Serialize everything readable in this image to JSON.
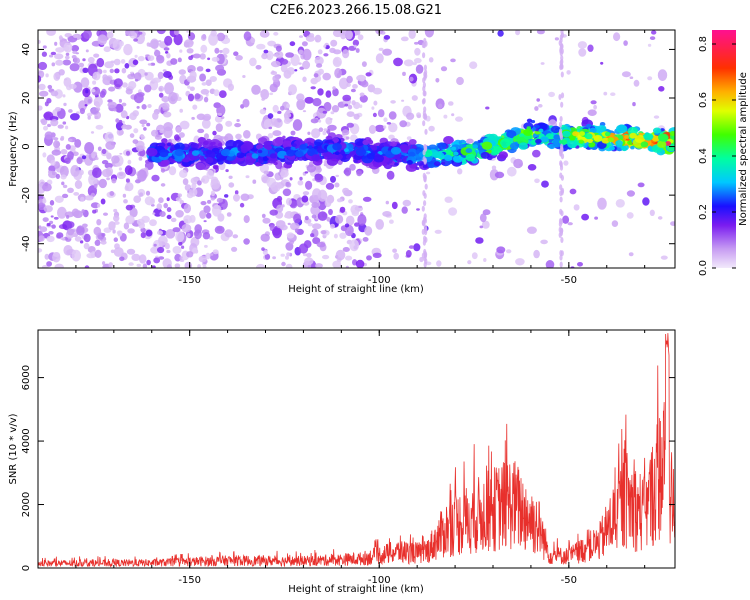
{
  "title": "C2E6.2023.266.15.08.G21",
  "chart_data": [
    {
      "type": "heatmap",
      "xlabel": "Height of straight line (km)",
      "ylabel": "Frequency (Hz)",
      "xlim": [
        -190,
        -22
      ],
      "ylim": [
        -50,
        48
      ],
      "xticks": [
        -150,
        -100,
        -50
      ],
      "yticks": [
        -40,
        -20,
        0,
        20,
        40
      ],
      "colorbar": {
        "label": "Normalized spectral amplitude",
        "range": [
          0,
          0.85
        ],
        "ticks": [
          0.0,
          0.2,
          0.4,
          0.6,
          0.8
        ]
      },
      "ridge": [
        {
          "x": -155,
          "y": -3
        },
        {
          "x": -135,
          "y": -3
        },
        {
          "x": -110,
          "y": -1
        },
        {
          "x": -90,
          "y": -4
        },
        {
          "x": -75,
          "y": -2
        },
        {
          "x": -60,
          "y": 5
        },
        {
          "x": -45,
          "y": 4
        },
        {
          "x": -30,
          "y": 3
        },
        {
          "x": -22,
          "y": 2
        }
      ]
    },
    {
      "type": "line",
      "xlabel": "Height of straight line (km)",
      "ylabel": "SNR (10 * v/v)",
      "xlim": [
        -190,
        -22
      ],
      "ylim": [
        0,
        7500
      ],
      "xticks": [
        -150,
        -100,
        -50
      ],
      "yticks": [
        0,
        2000,
        4000,
        6000
      ],
      "color": "#e8302c",
      "envelope": [
        {
          "x": -190,
          "y": 250
        },
        {
          "x": -160,
          "y": 280
        },
        {
          "x": -140,
          "y": 400
        },
        {
          "x": -120,
          "y": 380
        },
        {
          "x": -105,
          "y": 500
        },
        {
          "x": -95,
          "y": 900
        },
        {
          "x": -88,
          "y": 800
        },
        {
          "x": -82,
          "y": 2200
        },
        {
          "x": -75,
          "y": 2800
        },
        {
          "x": -65,
          "y": 3600
        },
        {
          "x": -58,
          "y": 2300
        },
        {
          "x": -55,
          "y": 700
        },
        {
          "x": -50,
          "y": 650
        },
        {
          "x": -42,
          "y": 1400
        },
        {
          "x": -35,
          "y": 3800
        },
        {
          "x": -30,
          "y": 2900
        },
        {
          "x": -25,
          "y": 5800
        },
        {
          "x": -22,
          "y": 3000
        }
      ]
    }
  ]
}
